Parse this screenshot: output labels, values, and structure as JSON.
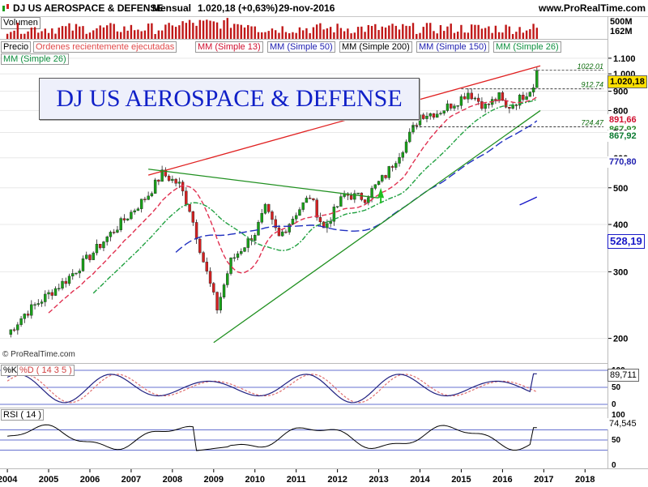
{
  "header": {
    "title": "DJ US AEROSPACE & DEFENSE",
    "period": "Mensual",
    "quote": "1.020,18 (+0,63%)",
    "date": "29-nov-2016",
    "site": "www.ProRealTime.com"
  },
  "chart_title": "DJ US AEROSPACE & DEFENSE",
  "volume_panel": {
    "label": "Volumen",
    "scale_top": "500M",
    "scale_mid": "162M"
  },
  "legend": {
    "precio": "Precio",
    "ordenes": "Ordenes recientemente ejecutadas",
    "mm13": "MM (Simple 13)",
    "mm50": "MM (Simple 50)",
    "mm200": "MM (Simple 200)",
    "mm150": "MM (Simple 150)",
    "mm26a": "MM (Simple 26)",
    "mm26b": "MM (Simple 26)"
  },
  "watermark": "© ProRealTime.com",
  "price_labels": {
    "last": "1.020,18",
    "mm13": "891,66",
    "mm26_hidden": "867,92",
    "mm26": "867,92",
    "mm50": "770,80",
    "mm150": "528,19"
  },
  "level_labels": [
    "1022.01",
    "912.74",
    "724.47"
  ],
  "y_ticks": [
    "1.100",
    "1.000",
    "900",
    "800",
    "700",
    "600",
    "500",
    "400",
    "300",
    "200"
  ],
  "stochastic": {
    "label_k": "%K",
    "label_d": "%D ( 14 3 5 )",
    "value": "89,711",
    "ticks": [
      "100",
      "50",
      "0"
    ]
  },
  "rsi": {
    "label": "RSI ( 14 )",
    "value": "74,545",
    "ticks": [
      "100",
      "50",
      "0"
    ]
  },
  "x_ticks": [
    "2004",
    "2005",
    "2006",
    "2007",
    "2008",
    "2009",
    "2010",
    "2011",
    "2012",
    "2013",
    "2014",
    "2015",
    "2016",
    "2017",
    "2018"
  ],
  "colors": {
    "up": "#18a018",
    "down": "#d42020",
    "mm13": "#e03050",
    "mm26": "#20a040",
    "mm50": "#2030c0",
    "mm150": "#1818c8",
    "resistance": "#e02020",
    "support": "#209020"
  },
  "chart_data": {
    "type": "candlestick",
    "title": "DJ US AEROSPACE & DEFENSE",
    "timeframe": "monthly",
    "x_range": [
      "2004-01",
      "2016-11"
    ],
    "ylim": [
      190,
      1110
    ],
    "y_scale": "log",
    "close_series": [
      {
        "date": "2004-01",
        "close": 205
      },
      {
        "date": "2004-06",
        "close": 232
      },
      {
        "date": "2005-01",
        "close": 262
      },
      {
        "date": "2005-06",
        "close": 285
      },
      {
        "date": "2006-01",
        "close": 330
      },
      {
        "date": "2006-06",
        "close": 370
      },
      {
        "date": "2007-01",
        "close": 430
      },
      {
        "date": "2007-06",
        "close": 480
      },
      {
        "date": "2007-10",
        "close": 545
      },
      {
        "date": "2008-03",
        "close": 510
      },
      {
        "date": "2008-06",
        "close": 440
      },
      {
        "date": "2008-10",
        "close": 320
      },
      {
        "date": "2009-02",
        "close": 240
      },
      {
        "date": "2009-06",
        "close": 320
      },
      {
        "date": "2010-01",
        "close": 380
      },
      {
        "date": "2010-04",
        "close": 440
      },
      {
        "date": "2010-08",
        "close": 370
      },
      {
        "date": "2011-01",
        "close": 430
      },
      {
        "date": "2011-05",
        "close": 475
      },
      {
        "date": "2011-09",
        "close": 390
      },
      {
        "date": "2012-03",
        "close": 480
      },
      {
        "date": "2012-09",
        "close": 470
      },
      {
        "date": "2013-03",
        "close": 540
      },
      {
        "date": "2013-09",
        "close": 660
      },
      {
        "date": "2014-01",
        "close": 780
      },
      {
        "date": "2014-06",
        "close": 790
      },
      {
        "date": "2014-12",
        "close": 850
      },
      {
        "date": "2015-03",
        "close": 895
      },
      {
        "date": "2015-08",
        "close": 820
      },
      {
        "date": "2015-12",
        "close": 870
      },
      {
        "date": "2016-02",
        "close": 810
      },
      {
        "date": "2016-06",
        "close": 860
      },
      {
        "date": "2016-10",
        "close": 930
      },
      {
        "date": "2016-11",
        "close": 1020.18
      }
    ],
    "moving_averages": [
      {
        "name": "MM (Simple 13)",
        "last": 891.66
      },
      {
        "name": "MM (Simple 26)",
        "last": 867.92
      },
      {
        "name": "MM (Simple 50)",
        "last": 770.8
      },
      {
        "name": "MM (Simple 150)",
        "last": 528.19
      }
    ],
    "horizontal_levels": [
      1022.01,
      912.74,
      724.47
    ],
    "trendlines": [
      {
        "name": "resistance",
        "from": {
          "date": "2007-06",
          "value": 540
        },
        "to": {
          "date": "2016-12",
          "value": 1050
        }
      },
      {
        "name": "support",
        "from": {
          "date": "2009-01",
          "value": 195
        },
        "to": {
          "date": "2016-12",
          "value": 800
        }
      },
      {
        "name": "triangle-top",
        "from": {
          "date": "2007-06",
          "value": 560
        },
        "to": {
          "date": "2013-01",
          "value": 470
        }
      }
    ],
    "stochastic_last": 89.711,
    "rsi_last": 74.545
  }
}
